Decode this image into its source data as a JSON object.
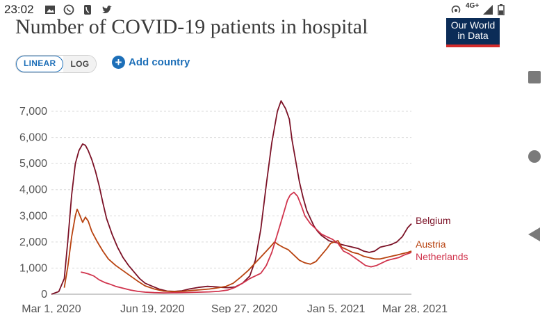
{
  "status_bar": {
    "time": "23:02",
    "icons": [
      "image-icon",
      "whatsapp-icon",
      "phone-icon",
      "twitter-icon"
    ],
    "right_icons": [
      "hotspot-icon",
      "signal-icon",
      "battery-icon"
    ],
    "network": "4G+"
  },
  "header": {
    "title": "Number of COVID-19 patients in hospital",
    "logo_line1": "Our World",
    "logo_line2": "in Data"
  },
  "controls": {
    "linear_label": "LINEAR",
    "log_label": "LOG",
    "add_country_label": "Add country"
  },
  "colors": {
    "belgium": "#7b1126",
    "austria": "#b8420f",
    "netherlands": "#d0334c",
    "accent": "#1d6fb8",
    "grid": "#d9d9d9"
  },
  "chart_data": {
    "type": "line",
    "title": "Number of COVID-19 patients in hospital",
    "xlabel": "",
    "ylabel": "",
    "ylim": [
      0,
      7800
    ],
    "y_ticks": [
      0,
      1000,
      2000,
      3000,
      4000,
      5000,
      6000,
      7000
    ],
    "y_tick_labels": [
      "0",
      "1,000",
      "2,000",
      "3,000",
      "4,000",
      "5,000",
      "6,000",
      "7,000"
    ],
    "x_domain_days": [
      0,
      392
    ],
    "x_ticks": [
      {
        "label": "Mar 1, 2020",
        "day": 0
      },
      {
        "label": "Jun 19, 2020",
        "day": 110
      },
      {
        "label": "Sep 27, 2020",
        "day": 210
      },
      {
        "label": "Jan 5, 2021",
        "day": 310
      },
      {
        "label": "Mar 28, 2021",
        "day": 392
      }
    ],
    "series": [
      {
        "name": "Belgium",
        "color_key": "belgium",
        "points": [
          [
            0,
            0
          ],
          [
            8,
            100
          ],
          [
            14,
            600
          ],
          [
            18,
            2100
          ],
          [
            22,
            3800
          ],
          [
            26,
            5000
          ],
          [
            30,
            5500
          ],
          [
            34,
            5750
          ],
          [
            37,
            5700
          ],
          [
            40,
            5500
          ],
          [
            44,
            5150
          ],
          [
            48,
            4700
          ],
          [
            52,
            4150
          ],
          [
            56,
            3500
          ],
          [
            60,
            2900
          ],
          [
            66,
            2300
          ],
          [
            72,
            1800
          ],
          [
            78,
            1400
          ],
          [
            84,
            1100
          ],
          [
            90,
            850
          ],
          [
            96,
            600
          ],
          [
            102,
            420
          ],
          [
            110,
            300
          ],
          [
            118,
            190
          ],
          [
            126,
            120
          ],
          [
            134,
            110
          ],
          [
            142,
            130
          ],
          [
            150,
            200
          ],
          [
            160,
            260
          ],
          [
            170,
            300
          ],
          [
            180,
            280
          ],
          [
            186,
            260
          ],
          [
            192,
            250
          ],
          [
            200,
            280
          ],
          [
            208,
            420
          ],
          [
            216,
            700
          ],
          [
            222,
            1300
          ],
          [
            228,
            2500
          ],
          [
            234,
            4200
          ],
          [
            240,
            5800
          ],
          [
            246,
            7000
          ],
          [
            250,
            7400
          ],
          [
            255,
            7100
          ],
          [
            259,
            6700
          ],
          [
            262,
            5900
          ],
          [
            266,
            5100
          ],
          [
            270,
            4300
          ],
          [
            274,
            3700
          ],
          [
            278,
            3200
          ],
          [
            282,
            2900
          ],
          [
            286,
            2600
          ],
          [
            290,
            2400
          ],
          [
            294,
            2250
          ],
          [
            298,
            2150
          ],
          [
            302,
            2050
          ],
          [
            306,
            2000
          ],
          [
            310,
            1980
          ],
          [
            316,
            1900
          ],
          [
            322,
            1850
          ],
          [
            328,
            1800
          ],
          [
            334,
            1750
          ],
          [
            340,
            1650
          ],
          [
            346,
            1600
          ],
          [
            352,
            1650
          ],
          [
            358,
            1800
          ],
          [
            364,
            1850
          ],
          [
            370,
            1900
          ],
          [
            376,
            2000
          ],
          [
            382,
            2200
          ],
          [
            388,
            2550
          ],
          [
            392,
            2700
          ]
        ]
      },
      {
        "name": "Austria",
        "color_key": "austria",
        "points": [
          [
            14,
            250
          ],
          [
            18,
            1100
          ],
          [
            22,
            2200
          ],
          [
            26,
            3000
          ],
          [
            28,
            3250
          ],
          [
            30,
            3100
          ],
          [
            34,
            2750
          ],
          [
            37,
            2950
          ],
          [
            40,
            2800
          ],
          [
            44,
            2400
          ],
          [
            50,
            2000
          ],
          [
            56,
            1650
          ],
          [
            62,
            1350
          ],
          [
            70,
            1100
          ],
          [
            78,
            900
          ],
          [
            86,
            700
          ],
          [
            94,
            500
          ],
          [
            102,
            320
          ],
          [
            112,
            200
          ],
          [
            122,
            120
          ],
          [
            132,
            100
          ],
          [
            142,
            110
          ],
          [
            152,
            140
          ],
          [
            162,
            170
          ],
          [
            172,
            200
          ],
          [
            182,
            250
          ],
          [
            190,
            300
          ],
          [
            198,
            420
          ],
          [
            206,
            650
          ],
          [
            214,
            900
          ],
          [
            222,
            1200
          ],
          [
            230,
            1500
          ],
          [
            238,
            1800
          ],
          [
            243,
            2000
          ],
          [
            247,
            1900
          ],
          [
            252,
            1800
          ],
          [
            258,
            1700
          ],
          [
            264,
            1500
          ],
          [
            270,
            1300
          ],
          [
            276,
            1200
          ],
          [
            282,
            1150
          ],
          [
            288,
            1250
          ],
          [
            294,
            1500
          ],
          [
            300,
            1750
          ],
          [
            304,
            1950
          ],
          [
            308,
            2000
          ],
          [
            312,
            2050
          ],
          [
            316,
            1800
          ],
          [
            322,
            1700
          ],
          [
            328,
            1600
          ],
          [
            334,
            1550
          ],
          [
            340,
            1450
          ],
          [
            346,
            1400
          ],
          [
            352,
            1350
          ],
          [
            358,
            1350
          ],
          [
            364,
            1400
          ],
          [
            370,
            1450
          ],
          [
            376,
            1500
          ],
          [
            382,
            1550
          ],
          [
            388,
            1600
          ],
          [
            392,
            1650
          ]
        ]
      },
      {
        "name": "Netherlands",
        "color_key": "netherlands",
        "points": [
          [
            32,
            850
          ],
          [
            36,
            820
          ],
          [
            40,
            780
          ],
          [
            46,
            700
          ],
          [
            52,
            550
          ],
          [
            58,
            450
          ],
          [
            64,
            380
          ],
          [
            70,
            300
          ],
          [
            78,
            230
          ],
          [
            86,
            160
          ],
          [
            94,
            110
          ],
          [
            102,
            80
          ],
          [
            112,
            60
          ],
          [
            122,
            50
          ],
          [
            132,
            55
          ],
          [
            142,
            60
          ],
          [
            152,
            70
          ],
          [
            162,
            80
          ],
          [
            172,
            90
          ],
          [
            182,
            110
          ],
          [
            192,
            160
          ],
          [
            200,
            260
          ],
          [
            208,
            420
          ],
          [
            216,
            600
          ],
          [
            222,
            700
          ],
          [
            228,
            800
          ],
          [
            234,
            1100
          ],
          [
            240,
            1600
          ],
          [
            246,
            2300
          ],
          [
            252,
            3000
          ],
          [
            257,
            3600
          ],
          [
            260,
            3800
          ],
          [
            264,
            3900
          ],
          [
            268,
            3750
          ],
          [
            272,
            3400
          ],
          [
            276,
            3000
          ],
          [
            282,
            2700
          ],
          [
            288,
            2500
          ],
          [
            294,
            2300
          ],
          [
            300,
            2200
          ],
          [
            306,
            2100
          ],
          [
            312,
            1950
          ],
          [
            318,
            1650
          ],
          [
            324,
            1550
          ],
          [
            330,
            1400
          ],
          [
            336,
            1250
          ],
          [
            342,
            1100
          ],
          [
            348,
            1050
          ],
          [
            354,
            1100
          ],
          [
            360,
            1200
          ],
          [
            366,
            1300
          ],
          [
            372,
            1350
          ],
          [
            378,
            1400
          ],
          [
            384,
            1500
          ],
          [
            392,
            1600
          ]
        ]
      }
    ],
    "legend": {
      "placement": "right-end",
      "entries": [
        "Belgium",
        "Austria",
        "Netherlands"
      ]
    }
  }
}
